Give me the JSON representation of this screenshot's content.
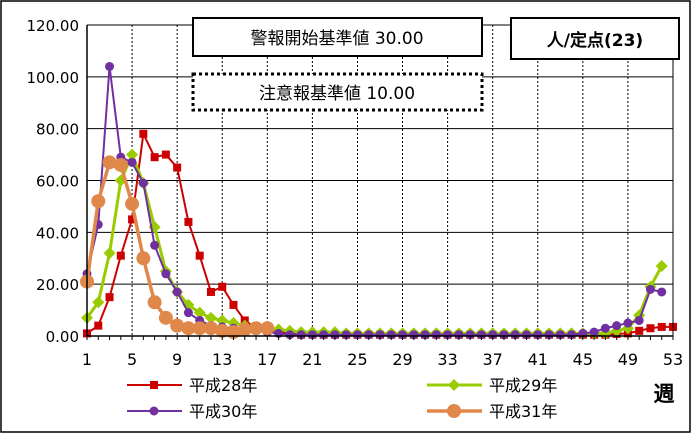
{
  "chart_data": {
    "type": "line",
    "x": [
      1,
      2,
      3,
      4,
      5,
      6,
      7,
      8,
      9,
      10,
      11,
      12,
      13,
      14,
      15,
      16,
      17,
      18,
      19,
      20,
      21,
      22,
      23,
      24,
      25,
      26,
      27,
      28,
      29,
      30,
      31,
      32,
      33,
      34,
      35,
      36,
      37,
      38,
      39,
      40,
      41,
      42,
      43,
      44,
      45,
      46,
      47,
      48,
      49,
      50,
      51,
      52,
      53
    ],
    "x_ticks": [
      "1",
      "5",
      "9",
      "13",
      "17",
      "21",
      "25",
      "29",
      "33",
      "37",
      "41",
      "45",
      "49",
      "53"
    ],
    "x_tick_values": [
      1,
      5,
      9,
      13,
      17,
      21,
      25,
      29,
      33,
      37,
      41,
      45,
      49,
      53
    ],
    "xlim": [
      1,
      53
    ],
    "xlabel": "週",
    "y_ticks": [
      "0.00",
      "20.00",
      "40.00",
      "60.00",
      "80.00",
      "100.00",
      "120.00"
    ],
    "y_tick_values": [
      0,
      20,
      40,
      60,
      80,
      100,
      120
    ],
    "ylim": [
      0,
      120
    ],
    "grid": true,
    "unit_label": "人/定点(23)",
    "annotations": {
      "alert": "警報開始基準値 30.00",
      "caution": "注意報基準値 10.00"
    },
    "thresholds": {
      "alert": 30,
      "caution": 10
    },
    "series": [
      {
        "name": "平成28年",
        "color": "#cc0000",
        "marker": "square",
        "x": [
          1,
          2,
          3,
          4,
          5,
          6,
          7,
          8,
          9,
          10,
          11,
          12,
          13,
          14,
          15,
          16,
          17,
          18,
          19,
          20,
          21,
          22,
          23,
          24,
          25,
          26,
          27,
          28,
          29,
          30,
          31,
          32,
          33,
          34,
          35,
          36,
          37,
          38,
          39,
          40,
          41,
          42,
          43,
          44,
          45,
          46,
          47,
          48,
          49,
          50,
          51,
          52,
          53
        ],
        "values": [
          1,
          4,
          15,
          31,
          45,
          78,
          69,
          70,
          65,
          44,
          31,
          17,
          19,
          12,
          6,
          3,
          2,
          1.5,
          1,
          0.5,
          0.5,
          0.5,
          0.5,
          0.5,
          0.5,
          0.5,
          0.5,
          0.5,
          0.5,
          0.5,
          0.5,
          0.5,
          0.5,
          0.5,
          0.5,
          0.5,
          0.5,
          0.5,
          0.5,
          0.5,
          0.5,
          0.5,
          0.5,
          0.5,
          0.5,
          0.5,
          0.5,
          0.8,
          1,
          2,
          3,
          3.5,
          3.5
        ]
      },
      {
        "name": "平成29年",
        "color": "#99cc00",
        "marker": "diamond",
        "x": [
          1,
          2,
          3,
          4,
          5,
          6,
          7,
          8,
          9,
          10,
          11,
          12,
          13,
          14,
          15,
          16,
          17,
          18,
          19,
          20,
          21,
          22,
          23,
          24,
          25,
          26,
          27,
          28,
          29,
          30,
          31,
          32,
          33,
          34,
          35,
          36,
          37,
          38,
          39,
          40,
          41,
          42,
          43,
          44,
          45,
          46,
          47,
          48,
          49,
          50,
          51,
          52
        ],
        "values": [
          7,
          13,
          32,
          60,
          70,
          59,
          42,
          25,
          17,
          12,
          9,
          7,
          6,
          5,
          4,
          3.5,
          3,
          2.5,
          2,
          1.5,
          1.5,
          1.5,
          1.5,
          1,
          1,
          1,
          1,
          1,
          1,
          1,
          1,
          1,
          1,
          1,
          1,
          1,
          1,
          1,
          1,
          1,
          1,
          1,
          1,
          1,
          1,
          1,
          1,
          2,
          3,
          8,
          19,
          27
        ]
      },
      {
        "name": "平成30年",
        "color": "#7030a0",
        "marker": "circle",
        "x": [
          1,
          2,
          3,
          4,
          5,
          6,
          7,
          8,
          9,
          10,
          11,
          12,
          13,
          14,
          15,
          16,
          17,
          18,
          19,
          20,
          21,
          22,
          23,
          24,
          25,
          26,
          27,
          28,
          29,
          30,
          31,
          32,
          33,
          34,
          35,
          36,
          37,
          38,
          39,
          40,
          41,
          42,
          43,
          44,
          45,
          46,
          47,
          48,
          49,
          50,
          51,
          52
        ],
        "values": [
          24,
          43,
          104,
          69,
          67,
          59,
          35,
          24,
          17,
          9,
          6,
          4,
          3.5,
          3,
          2.5,
          2,
          1.5,
          1,
          0.5,
          0.5,
          0.5,
          0.5,
          0.5,
          0.5,
          0.5,
          0.5,
          0.5,
          0.5,
          0.5,
          0.5,
          0.5,
          0.5,
          0.5,
          0.5,
          0.5,
          0.5,
          0.5,
          0.5,
          0.5,
          0.5,
          0.5,
          0.5,
          0.5,
          0.5,
          1,
          1.5,
          3,
          4,
          5,
          6,
          18,
          17
        ]
      },
      {
        "name": "平成31年",
        "color": "#e0874a",
        "marker": "circle-large",
        "x": [
          1,
          2,
          3,
          4,
          5,
          6,
          7,
          8,
          9,
          10,
          11,
          12,
          13,
          14,
          15,
          16,
          17
        ],
        "values": [
          21,
          52,
          67,
          66,
          51,
          30,
          13,
          7,
          4,
          3,
          3,
          3,
          2,
          1.5,
          2.5,
          3,
          3
        ]
      }
    ]
  }
}
